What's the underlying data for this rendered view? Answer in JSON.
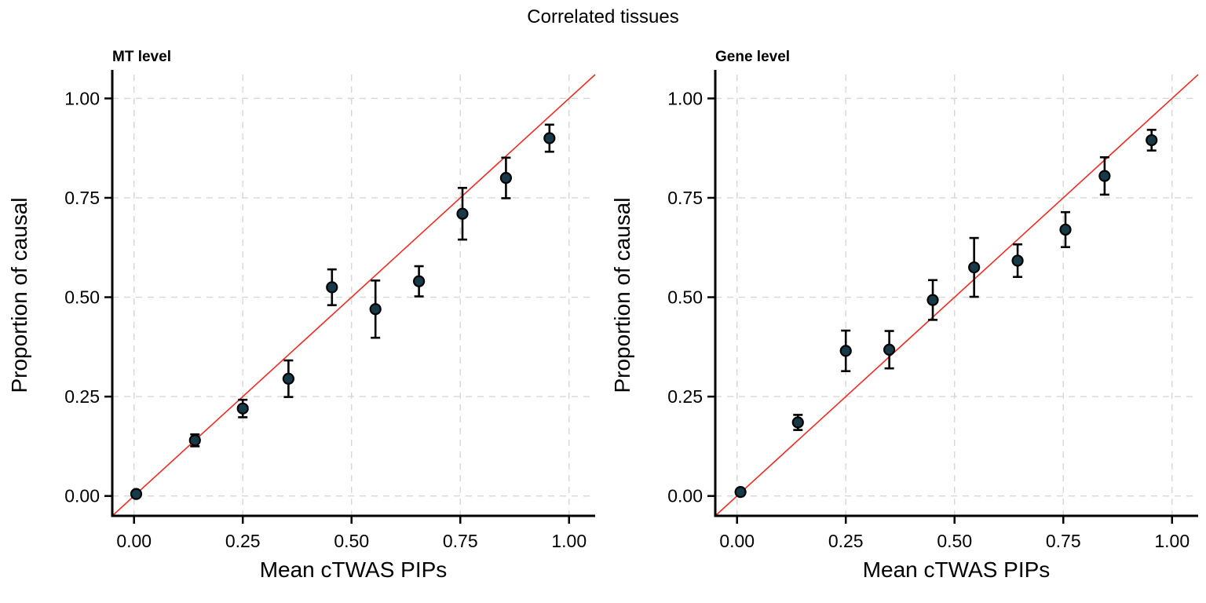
{
  "title": "Correlated tissues",
  "colors": {
    "point_fill": "#173a49",
    "point_stroke": "#000000",
    "error_bar": "#000000",
    "reference_line": "#ee2c24",
    "grid": "#d7d7d7",
    "axis": "#000000"
  },
  "axes": {
    "tick_values": [
      0,
      0.25,
      0.5,
      0.75,
      1
    ],
    "tick_labels": [
      "0.00",
      "0.25",
      "0.50",
      "0.75",
      "1.00"
    ],
    "domain": [
      -0.05,
      1.06
    ]
  },
  "chart_data": [
    {
      "type": "scatter",
      "panel_title": "MT level",
      "xlabel": "Mean cTWAS PIPs",
      "ylabel": "Proportion of causal",
      "xlim": [
        -0.05,
        1.06
      ],
      "ylim": [
        -0.05,
        1.06
      ],
      "grid": "dashed",
      "legend": "none",
      "reference_line": "y = x (red)",
      "points": [
        {
          "x": 0.005,
          "y": 0.005,
          "err": 0.004
        },
        {
          "x": 0.14,
          "y": 0.14,
          "err": 0.015
        },
        {
          "x": 0.25,
          "y": 0.22,
          "err": 0.022
        },
        {
          "x": 0.355,
          "y": 0.295,
          "err": 0.046
        },
        {
          "x": 0.455,
          "y": 0.525,
          "err": 0.045
        },
        {
          "x": 0.555,
          "y": 0.47,
          "err": 0.072
        },
        {
          "x": 0.655,
          "y": 0.54,
          "err": 0.038
        },
        {
          "x": 0.755,
          "y": 0.71,
          "err": 0.065
        },
        {
          "x": 0.855,
          "y": 0.8,
          "err": 0.051
        },
        {
          "x": 0.955,
          "y": 0.9,
          "err": 0.034
        }
      ]
    },
    {
      "type": "scatter",
      "panel_title": "Gene level",
      "xlabel": "Mean cTWAS PIPs",
      "ylabel": "Proportion of causal",
      "xlim": [
        -0.05,
        1.06
      ],
      "ylim": [
        -0.05,
        1.06
      ],
      "grid": "dashed",
      "legend": "none",
      "reference_line": "y = x (red)",
      "points": [
        {
          "x": 0.008,
          "y": 0.01,
          "err": 0.004
        },
        {
          "x": 0.14,
          "y": 0.185,
          "err": 0.019
        },
        {
          "x": 0.25,
          "y": 0.365,
          "err": 0.051
        },
        {
          "x": 0.35,
          "y": 0.368,
          "err": 0.047
        },
        {
          "x": 0.45,
          "y": 0.493,
          "err": 0.05
        },
        {
          "x": 0.545,
          "y": 0.575,
          "err": 0.074
        },
        {
          "x": 0.645,
          "y": 0.592,
          "err": 0.041
        },
        {
          "x": 0.755,
          "y": 0.67,
          "err": 0.044
        },
        {
          "x": 0.845,
          "y": 0.805,
          "err": 0.047
        },
        {
          "x": 0.953,
          "y": 0.895,
          "err": 0.026
        }
      ]
    }
  ]
}
